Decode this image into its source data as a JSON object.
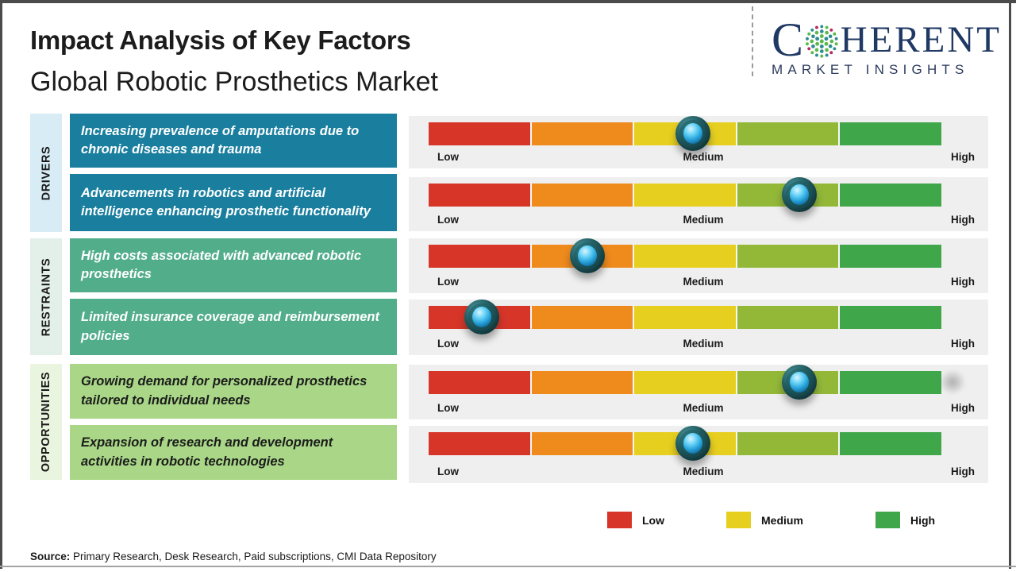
{
  "header": {
    "title": "Impact Analysis of Key Factors",
    "subtitle": "Global Robotic Prosthetics Market",
    "logo": {
      "letter_c": "C",
      "word_rest": "HERENT",
      "tagline": "MARKET INSIGHTS"
    }
  },
  "sections": [
    {
      "label": "DRIVERS"
    },
    {
      "label": "RESTRAINTS"
    },
    {
      "label": "OPPORTUNITIES"
    }
  ],
  "scale": {
    "low": "Low",
    "medium": "Medium",
    "high": "High"
  },
  "legend": {
    "items": [
      {
        "label": "Low"
      },
      {
        "label": "Medium"
      },
      {
        "label": "High"
      }
    ]
  },
  "source": {
    "prefix": "Source:",
    "text": " Primary Research, Desk Research, Paid subscriptions, CMI Data Repository"
  },
  "colors": {
    "segments": [
      "#d63528",
      "#ef8a1d",
      "#e7cf1f",
      "#93b838",
      "#3fa64a"
    ],
    "legend_swatches": [
      "#d63528",
      "#e7cf1f",
      "#3fa64a"
    ],
    "drivers_box": "#1a7f9f",
    "restraints_box": "#52ad8b",
    "opportunities_box": "#a9d787",
    "drivers_strip": "#d8ecf6",
    "restraints_strip": "#e3efe9",
    "opportunities_strip": "#eaf5df",
    "panel_bg": "#efefef",
    "logo_navy": "#1f3864",
    "logo_teal": "#2d8c90",
    "logo_green": "#5ab948",
    "logo_accent": "#b52a60"
  },
  "chart_data": {
    "type": "table",
    "title": "Impact Analysis of Key Factors",
    "subtitle": "Global Robotic Prosthetics Market",
    "scale_labels": [
      "Low",
      "Medium",
      "High"
    ],
    "scale_range_percent": [
      0,
      100
    ],
    "segment_colors": [
      "#d63528",
      "#ef8a1d",
      "#e7cf1f",
      "#93b838",
      "#3fa64a"
    ],
    "legend_position": "bottom-right",
    "rows": [
      {
        "category": "Drivers",
        "factor": "Increasing prevalence of amputations due to chronic diseases and trauma",
        "impact_level": "Medium",
        "position_percent": 51.5
      },
      {
        "category": "Drivers",
        "factor": "Advancements in robotics and artificial intelligence enhancing prosthetic functionality",
        "impact_level": "Medium-High",
        "position_percent": 72.3
      },
      {
        "category": "Restraints",
        "factor": "High costs associated with advanced robotic prosthetics",
        "impact_level": "Low-Medium",
        "position_percent": 31.0
      },
      {
        "category": "Restraints",
        "factor": "Limited insurance coverage and reimbursement policies",
        "impact_level": "Low",
        "position_percent": 10.4
      },
      {
        "category": "Opportunities",
        "factor": "Growing demand for personalized prosthetics tailored to individual needs",
        "impact_level": "Medium-High",
        "position_percent": 72.3
      },
      {
        "category": "Opportunities",
        "factor": "Expansion of research and development activities in robotic technologies",
        "impact_level": "Medium",
        "position_percent": 51.5
      }
    ]
  }
}
